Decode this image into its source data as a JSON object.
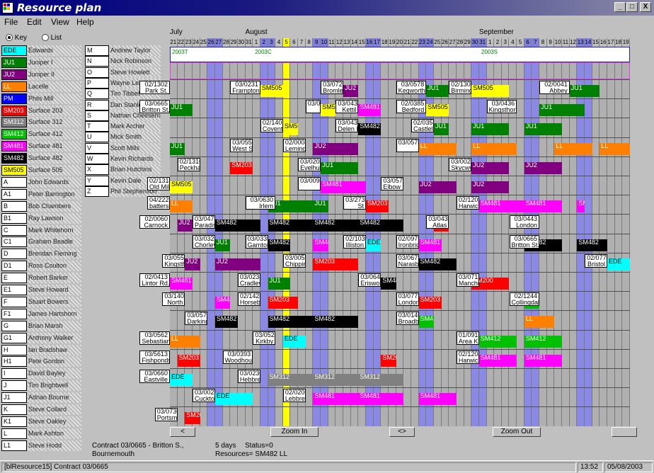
{
  "window": {
    "title": "Resource plan",
    "min": "_",
    "max": "□",
    "close": "X"
  },
  "menu": [
    "File",
    "Edit",
    "View",
    "Help"
  ],
  "radio": {
    "key": "Key",
    "list": "List"
  },
  "key_left": [
    {
      "code": "EDE",
      "color": "#00ffff",
      "text": "#000",
      "label": "Edwards"
    },
    {
      "code": "JU1",
      "color": "#008000",
      "text": "#fff",
      "label": "Juniper I"
    },
    {
      "code": "JU2",
      "color": "#800080",
      "text": "#fff",
      "label": "Juniper II"
    },
    {
      "code": "LL",
      "color": "#ff8000",
      "text": "#fff",
      "label": "Lacelle"
    },
    {
      "code": "PM",
      "color": "#0000ff",
      "text": "#fff",
      "label": "Phils Mill"
    },
    {
      "code": "SM203",
      "color": "#ff0000",
      "text": "#fff",
      "label": "Surface 203"
    },
    {
      "code": "SM312",
      "color": "#808080",
      "text": "#fff",
      "label": "Surface 312"
    },
    {
      "code": "SM412",
      "color": "#00c000",
      "text": "#fff",
      "label": "Surface 412"
    },
    {
      "code": "SM481",
      "color": "#ff00ff",
      "text": "#fff",
      "label": "Surface 481"
    },
    {
      "code": "SM482",
      "color": "#000000",
      "text": "#fff",
      "label": "Surface 482"
    },
    {
      "code": "SM505",
      "color": "#ffff00",
      "text": "#000",
      "label": "Surface 505"
    },
    {
      "code": "A",
      "color": "#ffffff",
      "text": "#000",
      "label": "John Edwards"
    },
    {
      "code": "A1",
      "color": "#ffffff",
      "text": "#000",
      "label": "Peter Barrington"
    },
    {
      "code": "B",
      "color": "#ffffff",
      "text": "#000",
      "label": "Bob Chambers"
    },
    {
      "code": "B1",
      "color": "#ffffff",
      "text": "#000",
      "label": "Ray Lawson"
    },
    {
      "code": "C",
      "color": "#ffffff",
      "text": "#000",
      "label": "Mark Whitehorn"
    },
    {
      "code": "C1",
      "color": "#ffffff",
      "text": "#000",
      "label": "Graham Beadle"
    },
    {
      "code": "D",
      "color": "#ffffff",
      "text": "#000",
      "label": "Brendan Fleming"
    },
    {
      "code": "D1",
      "color": "#ffffff",
      "text": "#000",
      "label": "Ross Coulton"
    },
    {
      "code": "E",
      "color": "#ffffff",
      "text": "#000",
      "label": "Robert Barker"
    },
    {
      "code": "E1",
      "color": "#ffffff",
      "text": "#000",
      "label": "Steve Howard"
    },
    {
      "code": "F",
      "color": "#ffffff",
      "text": "#000",
      "label": "Stuart Bowers"
    },
    {
      "code": "F1",
      "color": "#ffffff",
      "text": "#000",
      "label": "James Hartshorn"
    },
    {
      "code": "G",
      "color": "#ffffff",
      "text": "#000",
      "label": "Brian Marsh"
    },
    {
      "code": "G1",
      "color": "#ffffff",
      "text": "#000",
      "label": "Anthony Walker"
    },
    {
      "code": "H",
      "color": "#ffffff",
      "text": "#000",
      "label": "Ian Bradshaw"
    },
    {
      "code": "H1",
      "color": "#ffffff",
      "text": "#000",
      "label": "Pete Gordon"
    },
    {
      "code": "I",
      "color": "#ffffff",
      "text": "#000",
      "label": "David Bayley"
    },
    {
      "code": "J",
      "color": "#ffffff",
      "text": "#000",
      "label": "Tim Brightwell"
    },
    {
      "code": "J1",
      "color": "#ffffff",
      "text": "#000",
      "label": "Adrian Bourne"
    },
    {
      "code": "K",
      "color": "#ffffff",
      "text": "#000",
      "label": "Steve Collard"
    },
    {
      "code": "K1",
      "color": "#ffffff",
      "text": "#000",
      "label": "Steve Oakley"
    },
    {
      "code": "L",
      "color": "#ffffff",
      "text": "#000",
      "label": "Mark Ashton"
    },
    {
      "code": "L1",
      "color": "#ffffff",
      "text": "#000",
      "label": "Steve Hodd"
    }
  ],
  "key_right": [
    {
      "code": "M",
      "label": "Andrew Taylor"
    },
    {
      "code": "N",
      "label": "Nick Robinson"
    },
    {
      "code": "O",
      "label": "Steve Howlett"
    },
    {
      "code": "P",
      "label": "Wayne Leigh"
    },
    {
      "code": "Q",
      "label": "Tim Tibbet"
    },
    {
      "code": "R",
      "label": "Dan Stanley"
    },
    {
      "code": "S",
      "label": "Nathan Cheeseman"
    },
    {
      "code": "T",
      "label": "Mark Archer"
    },
    {
      "code": "U",
      "label": "Mick Smith"
    },
    {
      "code": "V",
      "label": "Scott Mills"
    },
    {
      "code": "W",
      "label": "Kevin Richards"
    },
    {
      "code": "X",
      "label": "Brian Hutchins"
    },
    {
      "code": "Y",
      "label": "Kevin Dale"
    },
    {
      "code": "Z",
      "label": "Phil Stephenson"
    }
  ],
  "months": [
    {
      "name": "July",
      "day": 0
    },
    {
      "name": "August",
      "day": 10
    },
    {
      "name": "September",
      "day": 41
    }
  ],
  "days": [
    "21",
    "22",
    "23",
    "24",
    "25",
    "26",
    "27",
    "28",
    "29",
    "30",
    "31",
    "1",
    "2",
    "3",
    "4",
    "5",
    "6",
    "7",
    "8",
    "9",
    "10",
    "11",
    "12",
    "13",
    "14",
    "15",
    "16",
    "17",
    "18",
    "19",
    "20",
    "21",
    "22",
    "23",
    "24",
    "25",
    "26",
    "27",
    "28",
    "29",
    "30",
    "31",
    "1",
    "2",
    "3",
    "4",
    "5",
    "6",
    "7",
    "8",
    "9",
    "10",
    "11",
    "12",
    "13",
    "14",
    "15",
    "16",
    "17",
    "18",
    "19"
  ],
  "weekend_days": [
    5,
    6,
    12,
    13,
    19,
    20,
    26,
    27,
    33,
    34,
    40,
    41,
    47,
    48,
    54,
    55
  ],
  "highlight_day": 15,
  "weeks": [
    {
      "label": "2003T",
      "day": 0
    },
    {
      "label": "2003C",
      "day": 11
    },
    {
      "label": "2003S",
      "day": 41
    }
  ],
  "tasks": [
    {
      "id": "02/1302",
      "place": "Park St.",
      "row": 0,
      "day": -4,
      "w": 4
    },
    {
      "id": "03/0231",
      "place": "Frampton",
      "row": 0,
      "day": 8,
      "w": 4
    },
    {
      "id": "03/0721",
      "place": "Bromley",
      "row": 0,
      "day": 20,
      "w": 3
    },
    {
      "id": "03/0578",
      "place": "Kegworth",
      "row": 0,
      "day": 30,
      "w": 4
    },
    {
      "id": "02/1303",
      "place": "Birmingham",
      "row": 0,
      "day": 37,
      "w": 3
    },
    {
      "id": "02/0041",
      "place": "Abbey",
      "row": 0,
      "day": 49,
      "w": 4
    },
    {
      "id": "03/0665",
      "place": "Britton St.",
      "row": 1,
      "day": -4,
      "w": 4
    },
    {
      "id": "03/0020",
      "place": "",
      "row": 1,
      "day": 18,
      "w": 2
    },
    {
      "id": "03/0436",
      "place": "Kettil",
      "row": 1,
      "day": 22,
      "w": 3
    },
    {
      "id": "02/0385",
      "place": "Bedford",
      "row": 1,
      "day": 30,
      "w": 4
    },
    {
      "id": "03/0436",
      "place": "Kingsthorpe",
      "row": 1,
      "day": 42,
      "w": 4
    },
    {
      "id": "03/0436",
      "place": "Delen Mill",
      "row": 2,
      "day": 22,
      "w": 3
    },
    {
      "id": "02/0353",
      "place": "Castleland",
      "row": 2,
      "day": 32,
      "w": 3
    },
    {
      "id": "02/1401",
      "place": "Coventry",
      "row": 2,
      "day": 12,
      "w": 3
    },
    {
      "id": "03/0551",
      "place": "West St.",
      "row": 3,
      "day": 8,
      "w": 3
    },
    {
      "id": "02/0004",
      "place": "Lemington",
      "row": 3,
      "day": 15,
      "w": 3
    },
    {
      "id": "03/0578",
      "place": "",
      "row": 3,
      "day": 30,
      "w": 3
    },
    {
      "id": "02/1316a",
      "place": "Peckham",
      "row": 4,
      "day": 1,
      "w": 3
    },
    {
      "id": "03/0200",
      "place": "Evelhurn",
      "row": 4,
      "day": 17,
      "w": 3
    },
    {
      "id": "03/0023",
      "place": "Skycwys",
      "row": 4,
      "day": 37,
      "w": 3
    },
    {
      "id": "02/1314",
      "place": "Old Mill",
      "row": 5,
      "day": -3,
      "w": 3
    },
    {
      "id": "03/0099",
      "place": "",
      "row": 5,
      "day": 17,
      "w": 3
    },
    {
      "id": "03/0570",
      "place": "Elbow St.",
      "row": 5,
      "day": 28,
      "w": 3
    },
    {
      "id": "04/2222",
      "place": "battersea",
      "row": 6,
      "day": -3,
      "w": 3
    },
    {
      "id": "03/0630",
      "place": "Irlem",
      "row": 6,
      "day": 10,
      "w": 4
    },
    {
      "id": "03/2732",
      "place": "St",
      "row": 6,
      "day": 23,
      "w": 3
    },
    {
      "id": "02/1208",
      "place": "Harwich",
      "row": 6,
      "day": 38,
      "w": 3
    },
    {
      "id": "02/0060",
      "place": "Carnock",
      "row": 7,
      "day": -4,
      "w": 4
    },
    {
      "id": "03/0473",
      "place": "Paradise",
      "row": 7,
      "day": 3,
      "w": 3
    },
    {
      "id": "03/0438",
      "place": "Atlas",
      "row": 7,
      "day": 34,
      "w": 3
    },
    {
      "id": "03/0443",
      "place": "London",
      "row": 7,
      "day": 45,
      "w": 4
    },
    {
      "id": "03/0324",
      "place": "Chorley",
      "row": 8,
      "day": 3,
      "w": 3
    },
    {
      "id": "03/0335",
      "place": "Garnton",
      "row": 8,
      "day": 10,
      "w": 3
    },
    {
      "id": "02/1038",
      "place": "Illiston",
      "row": 8,
      "day": 23,
      "w": 3
    },
    {
      "id": "02/0979",
      "place": "Ironbridge",
      "row": 8,
      "day": 30,
      "w": 3
    },
    {
      "id": "03/0665",
      "place": "Britton St.",
      "row": 8,
      "day": 45,
      "w": 4
    },
    {
      "id": "03/0552",
      "place": "Kingsthorpe",
      "row": 9,
      "day": -1,
      "w": 3
    },
    {
      "id": "03/0055",
      "place": "Chipping",
      "row": 9,
      "day": 15,
      "w": 3
    },
    {
      "id": "03/0672",
      "place": "Narasbrook",
      "row": 9,
      "day": 30,
      "w": 3
    },
    {
      "id": "02/0777",
      "place": "Bristol",
      "row": 9,
      "day": 55,
      "w": 3
    },
    {
      "id": "02/0413",
      "place": "Lintor Rd.",
      "row": 10,
      "day": -4,
      "w": 4
    },
    {
      "id": "03/0234",
      "place": "Cradley",
      "row": 10,
      "day": 9,
      "w": 3
    },
    {
      "id": "03/0649",
      "place": "Erisworth",
      "row": 10,
      "day": 25,
      "w": 3
    },
    {
      "id": "03/0715",
      "place": "Manchester",
      "row": 10,
      "day": 38,
      "w": 3
    },
    {
      "id": "03/1401",
      "place": "North",
      "row": 11,
      "day": -1,
      "w": 3
    },
    {
      "id": "02/1424",
      "place": "Horsebridge",
      "row": 11,
      "day": 9,
      "w": 3
    },
    {
      "id": "03/0777",
      "place": "London",
      "row": 11,
      "day": 30,
      "w": 3
    },
    {
      "id": "02/1244",
      "place": "Collingdale",
      "row": 11,
      "day": 45,
      "w": 4
    },
    {
      "id": "03/0573",
      "place": "Darking",
      "row": 12,
      "day": 2,
      "w": 3
    },
    {
      "id": "03/0146",
      "place": "Broadbank",
      "row": 12,
      "day": 30,
      "w": 3
    },
    {
      "id": "03/0562",
      "place": "Sebastian",
      "row": 13,
      "day": -4,
      "w": 4
    },
    {
      "id": "03/0522",
      "place": "Kirkby",
      "row": 13,
      "day": 11,
      "w": 3
    },
    {
      "id": "01/0913",
      "place": "Area K.",
      "row": 13,
      "day": 38,
      "w": 3
    },
    {
      "id": "03/5613",
      "place": "Fishponds",
      "row": 14,
      "day": -4,
      "w": 4
    },
    {
      "id": "03/0393",
      "place": "Woodhouse",
      "row": 14,
      "day": 7,
      "w": 4
    },
    {
      "id": "02/1208",
      "place": "Harwich",
      "row": 14,
      "day": 38,
      "w": 3
    },
    {
      "id": "03/0660",
      "place": "Eastville",
      "row": 15,
      "day": -4,
      "w": 4
    },
    {
      "id": "03/0230",
      "place": "Hebbrer",
      "row": 15,
      "day": 9,
      "w": 3
    },
    {
      "id": "03/0025",
      "place": "Cuckton",
      "row": 16,
      "day": 3,
      "w": 3
    },
    {
      "id": "02/0206",
      "place": "Lebbrer",
      "row": 16,
      "day": 15,
      "w": 3
    },
    {
      "id": "03/0730",
      "place": "Portsmouth",
      "row": 17,
      "day": -2,
      "w": 3
    }
  ],
  "bars": [
    {
      "code": "SM505",
      "row": 0,
      "day": 12,
      "w": 3
    },
    {
      "code": "JU2",
      "row": 0,
      "day": 23,
      "w": 2
    },
    {
      "code": "JU1",
      "row": 0,
      "day": 34,
      "w": 3
    },
    {
      "code": "SM505",
      "row": 0,
      "day": 40,
      "w": 5
    },
    {
      "code": "JU1",
      "row": 0,
      "day": 53,
      "w": 4
    },
    {
      "code": "SM505",
      "row": 1,
      "day": 20,
      "w": 2
    },
    {
      "code": "SM481",
      "row": 1,
      "day": 25,
      "w": 3
    },
    {
      "code": "SM505",
      "row": 1,
      "day": 34,
      "w": 3
    },
    {
      "code": "JU1",
      "row": 1,
      "day": 49,
      "w": 6
    },
    {
      "code": "JU1",
      "row": 1,
      "day": 0,
      "w": 3
    },
    {
      "code": "SM482",
      "row": 2,
      "day": 25,
      "w": 3
    },
    {
      "code": "JU1",
      "row": 2,
      "day": 35,
      "w": 2
    },
    {
      "code": "JU1",
      "row": 2,
      "day": 40,
      "w": 5
    },
    {
      "code": "JU1",
      "row": 2,
      "day": 47,
      "w": 5
    },
    {
      "code": "SM505",
      "row": 2,
      "day": 15,
      "w": 2
    },
    {
      "code": "JU1",
      "row": 3,
      "day": 0,
      "w": 2
    },
    {
      "code": "JU2",
      "row": 3,
      "day": 19,
      "w": 6
    },
    {
      "code": "LL",
      "row": 3,
      "day": 33,
      "w": 5
    },
    {
      "code": "LL",
      "row": 3,
      "day": 40,
      "w": 6
    },
    {
      "code": "LL",
      "row": 3,
      "day": 51,
      "w": 5
    },
    {
      "code": "LL",
      "row": 3,
      "day": 57,
      "w": 4
    },
    {
      "code": "SM203",
      "row": 4,
      "day": 8,
      "w": 3
    },
    {
      "code": "JU1",
      "row": 4,
      "day": 20,
      "w": 5
    },
    {
      "code": "JU2",
      "row": 4,
      "day": 40,
      "w": 5
    },
    {
      "code": "JU2",
      "row": 4,
      "day": 47,
      "w": 5
    },
    {
      "code": "SM505",
      "row": 5,
      "day": 0,
      "w": 3
    },
    {
      "code": "SM481",
      "row": 5,
      "day": 20,
      "w": 6
    },
    {
      "code": "JU2",
      "row": 5,
      "day": 33,
      "w": 5
    },
    {
      "code": "JU2",
      "row": 5,
      "day": 40,
      "w": 5
    },
    {
      "code": "LL",
      "row": 6,
      "day": 0,
      "w": 3
    },
    {
      "code": "JU1",
      "row": 6,
      "day": 13,
      "w": 6
    },
    {
      "code": "JU1",
      "row": 6,
      "day": 19,
      "w": 2
    },
    {
      "code": "SM203",
      "row": 6,
      "day": 26,
      "w": 3
    },
    {
      "code": "SM481",
      "row": 6,
      "day": 41,
      "w": 6
    },
    {
      "code": "SM481",
      "row": 6,
      "day": 47,
      "w": 5
    },
    {
      "code": "SM481",
      "row": 6,
      "day": 54,
      "w": 1
    },
    {
      "code": "JU2",
      "row": 7,
      "day": 1,
      "w": 2
    },
    {
      "code": "SM482",
      "row": 7,
      "day": 6,
      "w": 6
    },
    {
      "code": "SM482",
      "row": 7,
      "day": 13,
      "w": 6
    },
    {
      "code": "SM482",
      "row": 7,
      "day": 19,
      "w": 6
    },
    {
      "code": "SM482",
      "row": 7,
      "day": 25,
      "w": 6
    },
    {
      "code": "SM203",
      "row": 7,
      "day": 35,
      "w": 2
    },
    {
      "code": "JU1",
      "row": 8,
      "day": 6,
      "w": 2
    },
    {
      "code": "SM482",
      "row": 8,
      "day": 13,
      "w": 3
    },
    {
      "code": "SM481",
      "row": 8,
      "day": 19,
      "w": 2
    },
    {
      "code": "EDE",
      "row": 8,
      "day": 26,
      "w": 2
    },
    {
      "code": "SM481",
      "row": 8,
      "day": 33,
      "w": 3
    },
    {
      "code": "SM482",
      "row": 8,
      "day": 47,
      "w": 5
    },
    {
      "code": "SM482",
      "row": 8,
      "day": 54,
      "w": 4
    },
    {
      "code": "JU2",
      "row": 9,
      "day": 2,
      "w": 2
    },
    {
      "code": "JU2",
      "row": 9,
      "day": 6,
      "w": 6
    },
    {
      "code": "SM203",
      "row": 9,
      "day": 19,
      "w": 6
    },
    {
      "code": "SM482",
      "row": 9,
      "day": 33,
      "w": 5
    },
    {
      "code": "EDE",
      "row": 9,
      "day": 58,
      "w": 4
    },
    {
      "code": "SM481",
      "row": 10,
      "day": 0,
      "w": 3
    },
    {
      "code": "JU1",
      "row": 10,
      "day": 13,
      "w": 3
    },
    {
      "code": "SM482",
      "row": 10,
      "day": 28,
      "w": 2
    },
    {
      "code": "SM200",
      "row": 10,
      "day": 40,
      "w": 5
    },
    {
      "code": "SM481",
      "row": 11,
      "day": 6,
      "w": 2
    },
    {
      "code": "SM203",
      "row": 11,
      "day": 13,
      "w": 4
    },
    {
      "code": "SM203",
      "row": 11,
      "day": 33,
      "w": 3
    },
    {
      "code": "SM412",
      "row": 11,
      "day": 47,
      "w": 2
    },
    {
      "code": "SM482",
      "row": 12,
      "day": 6,
      "w": 3
    },
    {
      "code": "SM482",
      "row": 12,
      "day": 13,
      "w": 6
    },
    {
      "code": "SM482",
      "row": 12,
      "day": 19,
      "w": 6
    },
    {
      "code": "SM412",
      "row": 12,
      "day": 33,
      "w": 2
    },
    {
      "code": "LL",
      "row": 12,
      "day": 47,
      "w": 4
    },
    {
      "code": "LL",
      "row": 13,
      "day": 0,
      "w": 4
    },
    {
      "code": "EDE",
      "row": 13,
      "day": 15,
      "w": 3
    },
    {
      "code": "SM412",
      "row": 13,
      "day": 41,
      "w": 5
    },
    {
      "code": "SM412",
      "row": 13,
      "day": 47,
      "w": 5
    },
    {
      "code": "SM203",
      "row": 14,
      "day": 1,
      "w": 3
    },
    {
      "code": "SM203",
      "row": 14,
      "day": 28,
      "w": 2
    },
    {
      "code": "SM481",
      "row": 14,
      "day": 41,
      "w": 5
    },
    {
      "code": "SM481",
      "row": 14,
      "day": 47,
      "w": 5
    },
    {
      "code": "EDE",
      "row": 15,
      "day": 0,
      "w": 3
    },
    {
      "code": "SM312",
      "row": 15,
      "day": 13,
      "w": 6
    },
    {
      "code": "SM312",
      "row": 15,
      "day": 19,
      "w": 6
    },
    {
      "code": "SM312",
      "row": 15,
      "day": 25,
      "w": 6
    },
    {
      "code": "EDE",
      "row": 16,
      "day": 6,
      "w": 5
    },
    {
      "code": "SM481",
      "row": 16,
      "day": 19,
      "w": 6
    },
    {
      "code": "SM481",
      "row": 16,
      "day": 25,
      "w": 6
    },
    {
      "code": "SM481",
      "row": 16,
      "day": 33,
      "w": 5
    },
    {
      "code": "SM203",
      "row": 17,
      "day": 2,
      "w": 2
    }
  ],
  "scroll": {
    "left": "<",
    "zoom_in": "Zoom In",
    "mid": "<>",
    "zoom_out": "Zoom Out",
    "right": ""
  },
  "status": {
    "line1_contract": "Contract 03/0665 - Britton S.,",
    "line2_place": "Bournemouth",
    "days": "5 days",
    "status": "Status=0",
    "resources": "Resources= SM482 LL"
  },
  "statusbar": {
    "main": "[blResource15] Contract 03/0665",
    "time": "13:52",
    "date": "05/08/2003"
  }
}
